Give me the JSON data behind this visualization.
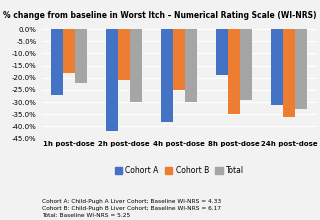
{
  "title": "% change from baseline in Worst Itch – Numerical Rating Scale (WI-NRS)",
  "groups": [
    "1h post-dose",
    "2h post-dose",
    "4h post-dose",
    "8h post-dose",
    "24h post-dose"
  ],
  "cohort_a": [
    -27,
    -42,
    -38,
    -19,
    -31
  ],
  "cohort_b": [
    -18,
    -21,
    -25,
    -35,
    -36
  ],
  "total": [
    -22,
    -30,
    -30,
    -29,
    -33
  ],
  "colors": {
    "cohort_a": "#4472C4",
    "cohort_b": "#ED7D31",
    "total": "#A5A5A5"
  },
  "ylim": [
    -45,
    2
  ],
  "yticks": [
    0,
    -5,
    -10,
    -15,
    -20,
    -25,
    -30,
    -35,
    -40,
    -45
  ],
  "legend_labels": [
    "Cohort A",
    "Cohort B",
    "Total"
  ],
  "footnote_lines": [
    "Cohort A: Child-Pugh A Liver Cohort; Baseline WI-NRS = 4.33",
    "Cohort B: Child-Pugh B Liver Cohort; Baseline WI-NRS = 6.17",
    "Total: Baseline WI-NRS = 5.25"
  ],
  "bar_width": 0.22,
  "background_color": "#F2F2F2"
}
